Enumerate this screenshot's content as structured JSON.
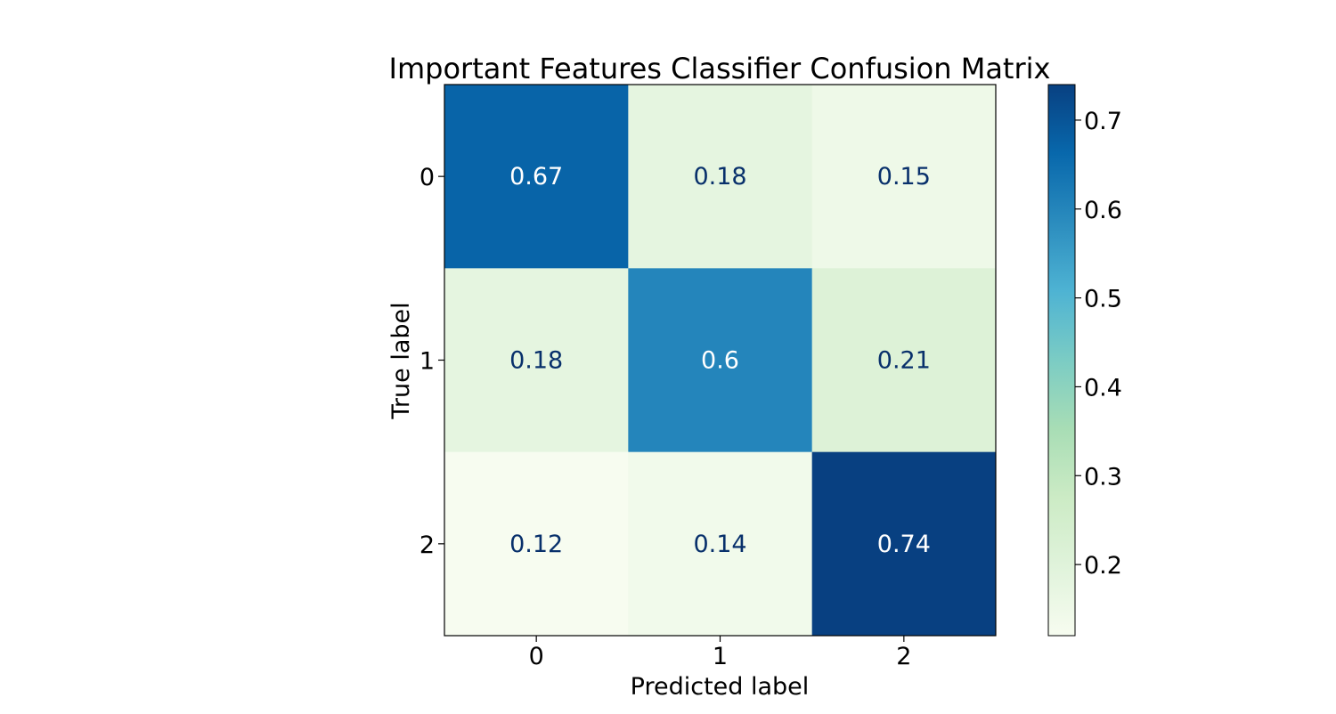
{
  "chart_data": {
    "type": "heatmap",
    "title": "Important Features Classifier Confusion Matrix",
    "xlabel": "Predicted label",
    "ylabel": "True label",
    "x_categories": [
      "0",
      "1",
      "2"
    ],
    "y_categories": [
      "0",
      "1",
      "2"
    ],
    "values": [
      [
        0.67,
        0.18,
        0.15
      ],
      [
        0.18,
        0.6,
        0.21
      ],
      [
        0.12,
        0.14,
        0.74
      ]
    ],
    "value_labels": [
      [
        "0.67",
        "0.18",
        "0.15"
      ],
      [
        "0.18",
        "0.6",
        "0.21"
      ],
      [
        "0.12",
        "0.14",
        "0.74"
      ]
    ],
    "colormap": "GnBu",
    "colorbar": {
      "min": 0.12,
      "max": 0.74,
      "ticks": [
        0.2,
        0.3,
        0.4,
        0.5,
        0.6,
        0.7
      ],
      "tick_labels": [
        "0.2",
        "0.3",
        "0.4",
        "0.5",
        "0.6",
        "0.7"
      ]
    },
    "text_colors": {
      "light": "#ffffff",
      "dark": "#08306b"
    }
  }
}
